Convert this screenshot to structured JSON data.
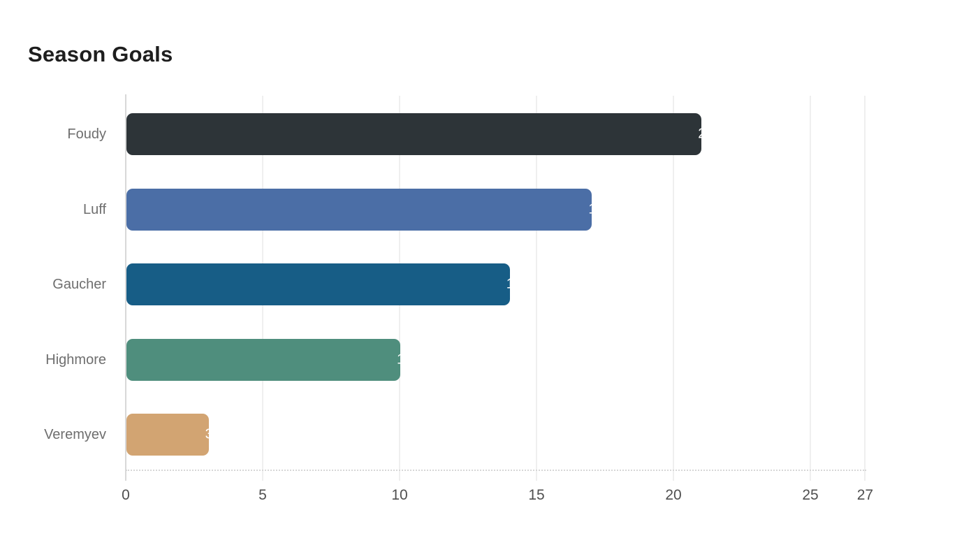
{
  "chart_data": {
    "type": "bar",
    "orientation": "horizontal",
    "title": "Season Goals",
    "categories": [
      "Foudy",
      "Luff",
      "Gaucher",
      "Highmore",
      "Veremyev"
    ],
    "values": [
      21,
      17,
      14,
      10,
      3
    ],
    "bar_colors": [
      "#2d3438",
      "#4b6ea6",
      "#175d86",
      "#4f8e7d",
      "#d2a472"
    ],
    "xlabel": "",
    "ylabel": "",
    "xlim": [
      0,
      27
    ],
    "xticks": [
      0,
      5,
      10,
      15,
      20,
      25,
      27
    ],
    "grid": true,
    "legend": false,
    "value_labels": "white, clipped at right edge of each bar"
  },
  "styles": {
    "bg_color": "#ffffff",
    "title_color": "#1e1e1e",
    "tick_color": "#4f4f4f",
    "category_label_color": "#6e6e6e",
    "grid_color": "#efefef",
    "axis_color": "#d8d8d8",
    "baseline_color": "#d6d6d6",
    "value_label_color": "#ffffff"
  }
}
